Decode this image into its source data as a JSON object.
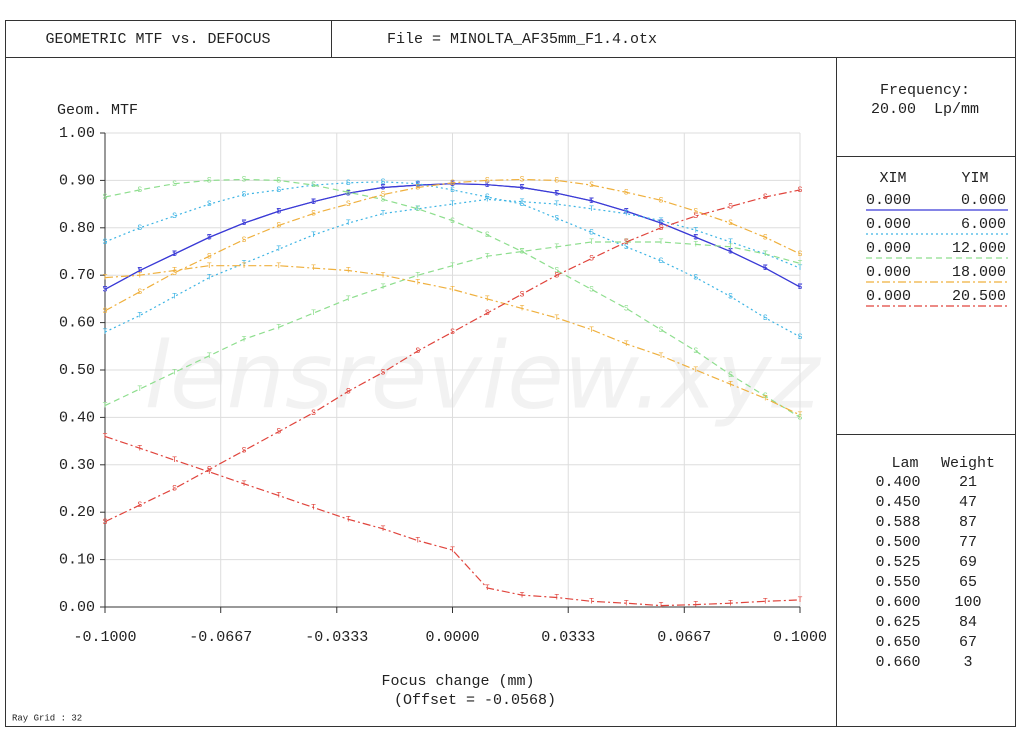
{
  "header": {
    "title": "GEOMETRIC MTF vs. DEFOCUS",
    "file": "File = MINOLTA_AF35mm_F1.4.otx"
  },
  "frequency": {
    "label": "Frequency:",
    "value": "20.00  Lp/mm"
  },
  "field_headers": [
    "XIM",
    "YIM"
  ],
  "wavelengths": {
    "headers": [
      "Lam",
      "Weight"
    ],
    "rows": [
      [
        "0.400",
        "21"
      ],
      [
        "0.450",
        "47"
      ],
      [
        "0.588",
        "87"
      ],
      [
        "0.500",
        "77"
      ],
      [
        "0.525",
        "69"
      ],
      [
        "0.550",
        "65"
      ],
      [
        "0.600",
        "100"
      ],
      [
        "0.625",
        "84"
      ],
      [
        "0.650",
        "67"
      ],
      [
        "0.660",
        "3"
      ]
    ]
  },
  "footer": "Ray Grid : 32",
  "chart_data": {
    "type": "line",
    "ylabel": "Geom. MTF",
    "xlabel": "Focus change (mm)",
    "xlabel2": "(Offset = -0.0568)",
    "watermark": "lensreview.xyz",
    "x": [
      -0.1,
      -0.09,
      -0.08,
      -0.07,
      -0.06,
      -0.05,
      -0.04,
      -0.03,
      -0.02,
      -0.01,
      0,
      0.01,
      0.02,
      0.03,
      0.04,
      0.05,
      0.06,
      0.07,
      0.08,
      0.09,
      0.1
    ],
    "xlim": [
      -0.1,
      0.1
    ],
    "ylim": [
      0,
      1
    ],
    "xticks": [
      {
        "value": -0.1,
        "label": "-0.1000"
      },
      -0.0667,
      -0.0333,
      {
        "value": 0,
        "label": "0.0000"
      },
      0.0333,
      0.0667,
      {
        "value": 0.1,
        "label": "0.1000"
      }
    ],
    "yticks": [
      {
        "value": 0,
        "label": "0.00"
      },
      {
        "value": 0.1,
        "label": "0.10"
      },
      {
        "value": 0.2,
        "label": "0.20"
      },
      {
        "value": 0.3,
        "label": "0.30"
      },
      {
        "value": 0.4,
        "label": "0.40"
      },
      {
        "value": 0.5,
        "label": "0.50"
      },
      {
        "value": 0.6,
        "label": "0.60"
      },
      {
        "value": 0.7,
        "label": "0.70"
      },
      {
        "value": 0.8,
        "label": "0.80"
      },
      {
        "value": 0.9,
        "label": "0.90"
      },
      {
        "value": 1,
        "label": "1.00"
      }
    ],
    "grid": true,
    "fields": [
      {
        "xim": "0.000",
        "yim": "0.000",
        "color": "#3b3bd6",
        "style": "solid",
        "series": [
          {
            "name": "T",
            "values": [
              0.67,
              0.71,
              0.745,
              0.78,
              0.81,
              0.835,
              0.855,
              0.873,
              0.885,
              0.89,
              0.893,
              0.891,
              0.885,
              0.873,
              0.857,
              0.835,
              0.81,
              0.78,
              0.75,
              0.715,
              0.675
            ]
          },
          {
            "name": "S",
            "values": [
              0.67,
              0.71,
              0.745,
              0.78,
              0.81,
              0.835,
              0.855,
              0.873,
              0.885,
              0.89,
              0.893,
              0.891,
              0.885,
              0.873,
              0.857,
              0.835,
              0.81,
              0.78,
              0.75,
              0.715,
              0.675
            ]
          }
        ]
      },
      {
        "xim": "0.000",
        "yim": "6.000",
        "color": "#3db4e4",
        "style": "dotted",
        "series": [
          {
            "name": "T",
            "values": [
              0.58,
              0.615,
              0.655,
              0.695,
              0.725,
              0.755,
              0.785,
              0.81,
              0.83,
              0.84,
              0.85,
              0.86,
              0.855,
              0.85,
              0.84,
              0.83,
              0.815,
              0.795,
              0.77,
              0.745,
              0.715
            ]
          },
          {
            "name": "S",
            "values": [
              0.77,
              0.8,
              0.825,
              0.85,
              0.87,
              0.88,
              0.89,
              0.895,
              0.897,
              0.893,
              0.88,
              0.865,
              0.85,
              0.82,
              0.79,
              0.76,
              0.73,
              0.695,
              0.655,
              0.61,
              0.57
            ]
          }
        ]
      },
      {
        "xim": "0.000",
        "yim": "12.000",
        "color": "#8ede8e",
        "style": "dashed",
        "series": [
          {
            "name": "T",
            "values": [
              0.425,
              0.46,
              0.495,
              0.53,
              0.565,
              0.59,
              0.62,
              0.65,
              0.675,
              0.7,
              0.72,
              0.74,
              0.75,
              0.76,
              0.77,
              0.77,
              0.77,
              0.765,
              0.76,
              0.745,
              0.725
            ]
          },
          {
            "name": "S",
            "values": [
              0.865,
              0.88,
              0.893,
              0.9,
              0.902,
              0.9,
              0.89,
              0.875,
              0.86,
              0.84,
              0.815,
              0.785,
              0.75,
              0.71,
              0.67,
              0.63,
              0.585,
              0.54,
              0.49,
              0.445,
              0.4
            ]
          }
        ]
      },
      {
        "xim": "0.000",
        "yim": "18.000",
        "color": "#efb03e",
        "style": "dashdot",
        "series": [
          {
            "name": "T",
            "values": [
              0.695,
              0.7,
              0.71,
              0.72,
              0.72,
              0.72,
              0.715,
              0.71,
              0.7,
              0.685,
              0.67,
              0.65,
              0.63,
              0.61,
              0.585,
              0.555,
              0.53,
              0.5,
              0.47,
              0.44,
              0.405
            ]
          },
          {
            "name": "S",
            "values": [
              0.625,
              0.665,
              0.705,
              0.74,
              0.775,
              0.805,
              0.83,
              0.85,
              0.87,
              0.885,
              0.895,
              0.9,
              0.902,
              0.9,
              0.89,
              0.875,
              0.858,
              0.835,
              0.81,
              0.78,
              0.745
            ]
          }
        ]
      },
      {
        "xim": "0.000",
        "yim": "20.500",
        "color": "#e0443c",
        "style": "dashdot",
        "series": [
          {
            "name": "T",
            "values": [
              0.36,
              0.335,
              0.31,
              0.285,
              0.26,
              0.235,
              0.21,
              0.185,
              0.165,
              0.14,
              0.12,
              0.04,
              0.025,
              0.02,
              0.012,
              0.008,
              0.003,
              0.005,
              0.008,
              0.012,
              0.015
            ]
          },
          {
            "name": "S",
            "values": [
              0.18,
              0.215,
              0.25,
              0.29,
              0.33,
              0.37,
              0.41,
              0.455,
              0.495,
              0.54,
              0.58,
              0.62,
              0.66,
              0.7,
              0.735,
              0.77,
              0.8,
              0.825,
              0.845,
              0.865,
              0.88
            ]
          }
        ]
      }
    ]
  }
}
